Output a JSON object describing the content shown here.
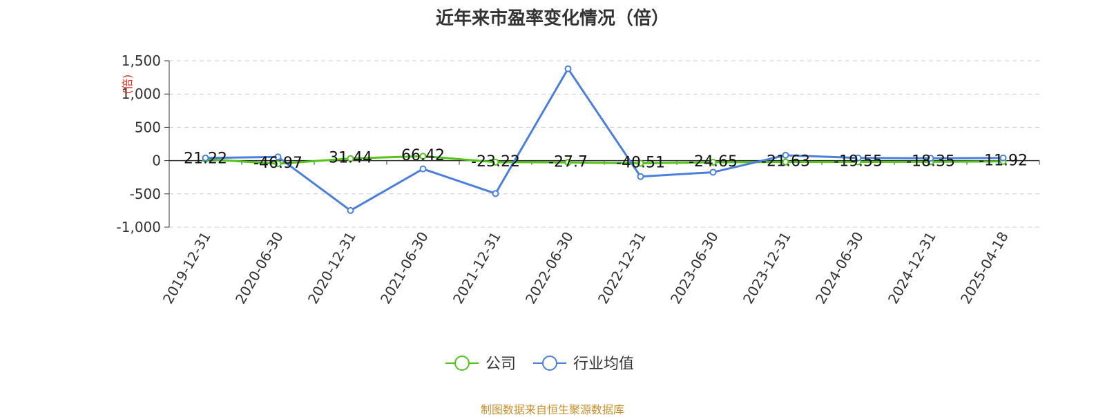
{
  "chart_data": {
    "type": "line",
    "title": "近年来市盈率变化情况（倍）",
    "ylabel": "(倍)",
    "xlabel": "",
    "ylim": [
      -1000,
      1500
    ],
    "yticks": [
      1500,
      1000,
      500,
      0,
      -500,
      -1000
    ],
    "ytick_labels": [
      "1,500",
      "1,000",
      "500",
      "0",
      "-500",
      "-1,000"
    ],
    "grid": true,
    "legend_position": "bottom-center",
    "categories": [
      "2019-12-31",
      "2020-06-30",
      "2020-12-31",
      "2021-06-30",
      "2021-12-31",
      "2022-06-30",
      "2022-12-31",
      "2023-06-30",
      "2023-12-31",
      "2024-06-30",
      "2024-12-31",
      "2025-04-18"
    ],
    "series": [
      {
        "name": "公司",
        "color": "#52c41a",
        "values": [
          21.22,
          -46.97,
          31.44,
          66.42,
          -23.22,
          -27.7,
          -40.51,
          -24.65,
          -21.63,
          -19.55,
          -18.35,
          -11.92
        ],
        "data_labels": [
          "21.22",
          "-46.97",
          "31.44",
          "66.42",
          "-23.22",
          "-27.7",
          "-40.51",
          "-24.65",
          "-21.63",
          "-19.55",
          "-18.35",
          "-11.92"
        ]
      },
      {
        "name": "行业均值",
        "color": "#4a7fdc",
        "values": [
          40,
          55,
          -750,
          -125,
          -495,
          1380,
          -240,
          -175,
          80,
          40,
          35,
          40
        ]
      }
    ]
  },
  "source": "制图数据来自恒生聚源数据库"
}
